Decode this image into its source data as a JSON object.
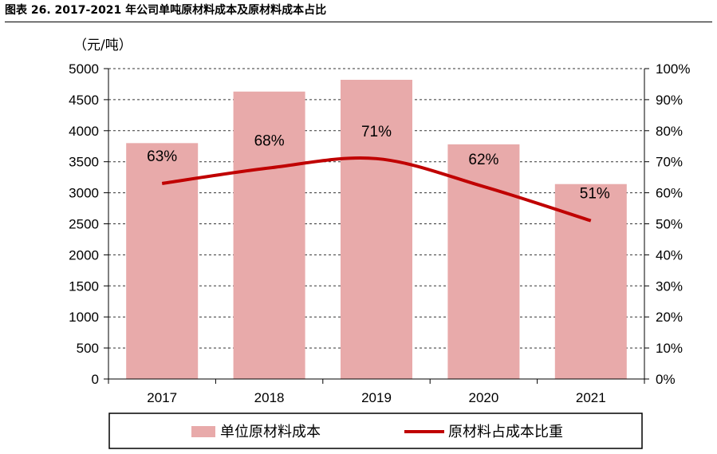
{
  "figure_title": "图表 26. 2017-2021 年公司单吨原材料成本及原材料成本占比",
  "chart_data": {
    "type": "bar",
    "categories": [
      "2017",
      "2018",
      "2019",
      "2020",
      "2021"
    ],
    "series": [
      {
        "name": "单位原材料成本",
        "type": "bar",
        "axis": "left",
        "values": [
          3800,
          4630,
          4820,
          3780,
          3140
        ],
        "color": "#e8aaaa"
      },
      {
        "name": "原材料占成本比重",
        "type": "line",
        "axis": "right",
        "values": [
          63,
          68,
          71,
          62,
          51
        ],
        "color": "#c00000"
      }
    ],
    "data_labels": [
      "63%",
      "68%",
      "71%",
      "62%",
      "51%"
    ],
    "y_left": {
      "unit_label": "（元/吨）",
      "ylim": [
        0,
        5000
      ],
      "ticks": [
        0,
        500,
        1000,
        1500,
        2000,
        2500,
        3000,
        3500,
        4000,
        4500,
        5000
      ]
    },
    "y_right": {
      "ylim": [
        0,
        100
      ],
      "ticks": [
        "0%",
        "10%",
        "20%",
        "30%",
        "40%",
        "50%",
        "60%",
        "70%",
        "80%",
        "90%",
        "100%"
      ]
    },
    "grid": "horizontal dashed",
    "legend_position": "bottom"
  }
}
